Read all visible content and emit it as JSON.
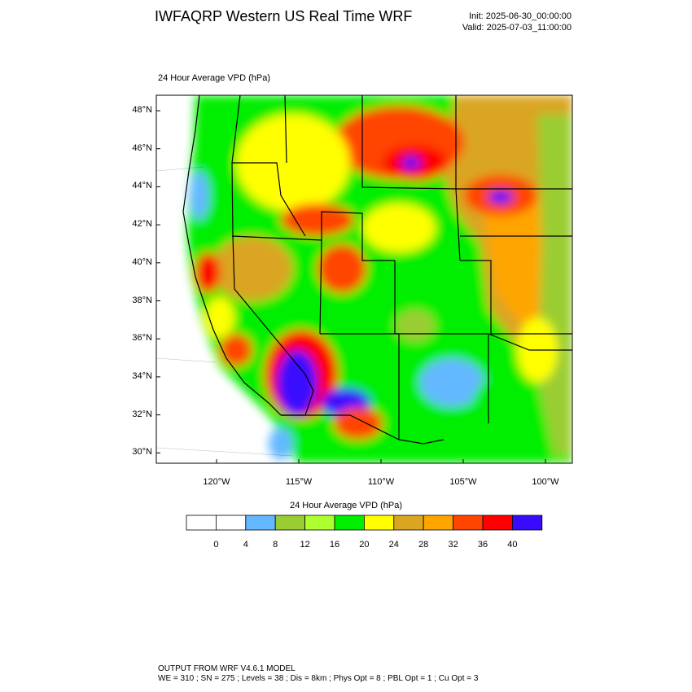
{
  "header": {
    "title": "IWFAQRP Western US Real Time WRF",
    "init": "Init: 2025-06-30_00:00:00",
    "valid": "Valid: 2025-07-03_11:00:00"
  },
  "field_label": "24 Hour Average VPD   (hPa)",
  "map": {
    "lat_labels": [
      "48°N",
      "46°N",
      "44°N",
      "42°N",
      "40°N",
      "38°N",
      "36°N",
      "34°N",
      "32°N",
      "30°N"
    ],
    "lon_labels": [
      "120°W",
      "115°W",
      "110°W",
      "105°W",
      "100°W"
    ]
  },
  "colorbar": {
    "title": "24 Hour Average VPD  (hPa)",
    "labels": [
      "0",
      "4",
      "8",
      "12",
      "16",
      "20",
      "24",
      "28",
      "32",
      "36",
      "40"
    ],
    "colors": [
      "#ffffff",
      "#ffffff",
      "#63b8ff",
      "#9acd32",
      "#adff2f",
      "#00ee00",
      "#ffff00",
      "#daa520",
      "#ffa500",
      "#ff4500",
      "#ff0000",
      "#3a0aff"
    ]
  },
  "footer": {
    "line1": "OUTPUT FROM WRF V4.6.1 MODEL",
    "line2": "WE = 310 ; SN = 275 ; Levels = 38 ; Dis = 8km ; Phys Opt = 8 ; PBL Opt = 1 ; Cu Opt = 3"
  }
}
